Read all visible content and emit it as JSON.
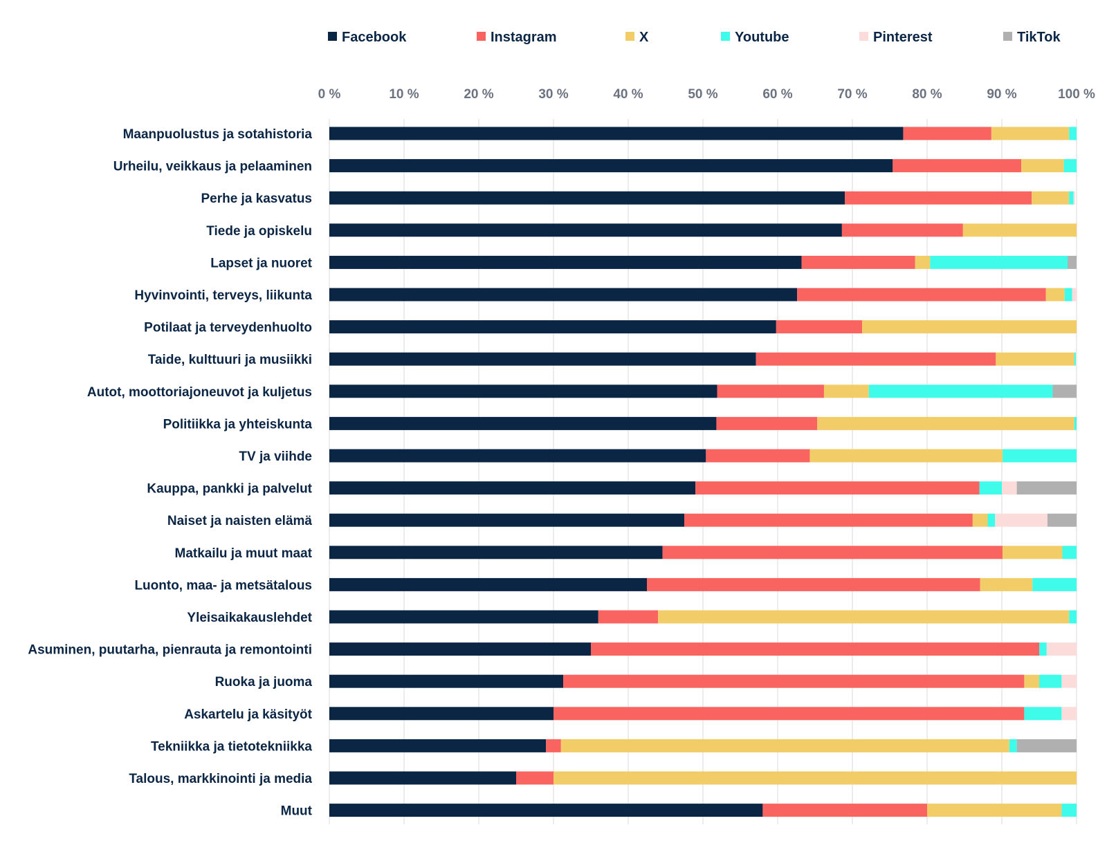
{
  "chart_data": {
    "type": "bar",
    "orientation": "horizontal",
    "stacked": true,
    "legend_position": "top",
    "grid": true,
    "xlim": [
      0,
      100
    ],
    "x_ticks": [
      "0 %",
      "10 %",
      "20 %",
      "30 %",
      "40 %",
      "50 %",
      "60 %",
      "70 %",
      "80 %",
      "90 %",
      "100 %"
    ],
    "categories": [
      "Maanpuolustus ja sotahistoria",
      "Urheilu, veikkaus ja pelaaminen",
      "Perhe ja kasvatus",
      "Tiede ja opiskelu",
      "Lapset ja nuoret",
      "Hyvinvointi, terveys, liikunta",
      "Potilaat ja terveydenhuolto",
      "Taide, kulttuuri ja musiikki",
      "Autot, moottoriajoneuvot ja kuljetus",
      "Politiikka ja yhteiskunta",
      "TV ja viihde",
      "Kauppa, pankki ja palvelut",
      "Naiset ja naisten elämä",
      "Matkailu ja muut maat",
      "Luonto, maa- ja metsätalous",
      "Yleisaikakauslehdet",
      "Asuminen, puutarha, pienrauta ja remontointi",
      "Ruoka ja juoma",
      "Askartelu ja käsityöt",
      "Tekniikka ja tietotekniikka",
      "Talous, markkinointi ja media",
      "Muut"
    ],
    "series": [
      {
        "name": "Facebook",
        "color": "#0b2545",
        "values": [
          76.8,
          75.4,
          69.0,
          68.6,
          63.2,
          62.6,
          59.8,
          57.1,
          51.9,
          51.8,
          50.4,
          49.0,
          47.5,
          44.6,
          42.5,
          36.0,
          35.0,
          31.3,
          30.0,
          29.0,
          25.0,
          58.0
        ]
      },
      {
        "name": "Instagram",
        "color": "#f96461",
        "values": [
          11.8,
          17.2,
          25.0,
          16.2,
          15.2,
          33.3,
          11.5,
          32.1,
          14.3,
          13.5,
          13.9,
          38.0,
          38.6,
          45.5,
          44.6,
          8.0,
          60.0,
          61.7,
          63.0,
          2.0,
          5.0,
          22.0
        ]
      },
      {
        "name": "X",
        "color": "#f2cd67",
        "values": [
          10.4,
          5.7,
          5.0,
          15.2,
          2.0,
          2.5,
          28.7,
          10.5,
          6.0,
          34.4,
          25.8,
          0.0,
          2.0,
          8.0,
          7.0,
          55.0,
          0.0,
          2.0,
          0.0,
          60.0,
          70.0,
          18.0
        ]
      },
      {
        "name": "Youtube",
        "color": "#3ffcea",
        "values": [
          1.0,
          1.7,
          0.6,
          0.0,
          18.4,
          1.0,
          0.0,
          0.2,
          24.6,
          0.3,
          9.9,
          3.0,
          1.0,
          1.9,
          5.9,
          1.0,
          1.0,
          3.0,
          5.0,
          1.0,
          0.0,
          2.0
        ]
      },
      {
        "name": "Pinterest",
        "color": "#fbdcdb",
        "values": [
          0.0,
          0.0,
          0.2,
          0.0,
          0.0,
          0.6,
          0.0,
          0.0,
          0.0,
          0.0,
          0.0,
          2.0,
          7.0,
          0.0,
          0.0,
          0.0,
          4.0,
          2.0,
          2.0,
          0.0,
          0.0,
          0.0
        ]
      },
      {
        "name": "TikTok",
        "color": "#b0b0b0",
        "values": [
          0.0,
          0.0,
          0.0,
          0.0,
          1.2,
          0.0,
          0.0,
          0.0,
          3.2,
          0.0,
          0.0,
          8.0,
          3.9,
          0.0,
          0.0,
          0.0,
          0.0,
          0.0,
          0.0,
          8.0,
          0.0,
          0.0
        ]
      }
    ]
  }
}
